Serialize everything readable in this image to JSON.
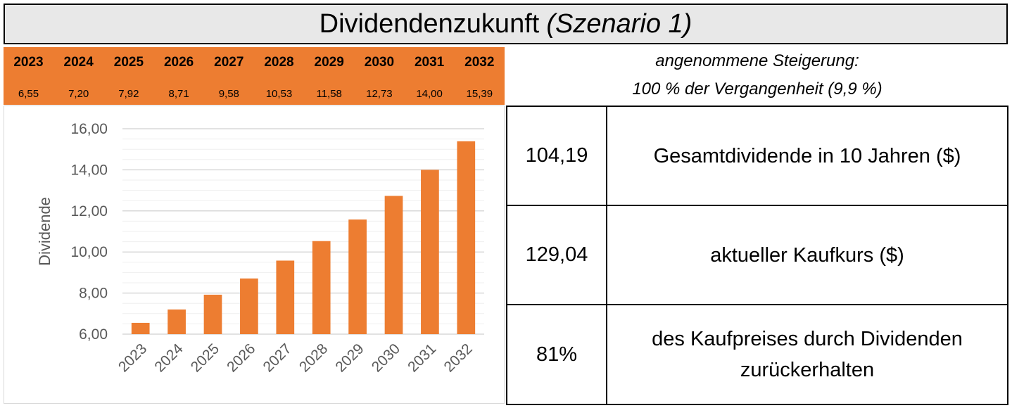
{
  "header": {
    "title_main": "Dividendenzukunft",
    "title_scenario": "(Szenario 1)"
  },
  "scenario": {
    "line1": "angenommene Steigerung:",
    "line2": "100 % der Vergangenheit (9,9 %)"
  },
  "year_table": {
    "years": [
      "2023",
      "2024",
      "2025",
      "2026",
      "2027",
      "2028",
      "2029",
      "2030",
      "2031",
      "2032"
    ],
    "values": [
      "6,55",
      "7,20",
      "7,92",
      "8,71",
      "9,58",
      "10,53",
      "11,58",
      "12,73",
      "14,00",
      "15,39"
    ]
  },
  "summary": [
    {
      "value": "104,19",
      "label": "Gesamtdividende in 10 Jahren ($)"
    },
    {
      "value": "129,04",
      "label": "aktueller Kaufkurs ($)"
    },
    {
      "value": "81%",
      "label": "des Kaufpreises durch Dividenden zurückerhalten"
    }
  ],
  "colors": {
    "bar": "#ed7d31",
    "band": "#ed7d31",
    "title_bg": "#e8e8e8",
    "grid": "#d9d9d9",
    "axis_text": "#595959"
  },
  "chart_data": {
    "type": "bar",
    "title": "",
    "xlabel": "",
    "ylabel": "Dividende",
    "categories": [
      "2023",
      "2024",
      "2025",
      "2026",
      "2027",
      "2028",
      "2029",
      "2030",
      "2031",
      "2032"
    ],
    "values": [
      6.55,
      7.2,
      7.92,
      8.71,
      9.58,
      10.53,
      11.58,
      12.73,
      14.0,
      15.39
    ],
    "ylim": [
      6,
      16
    ],
    "yticks": [
      6,
      8,
      10,
      12,
      14,
      16
    ],
    "ytick_labels": [
      "6,00",
      "8,00",
      "10,00",
      "12,00",
      "14,00",
      "16,00"
    ],
    "grid": true,
    "minor_grid": true,
    "legend": "none",
    "xtick_rotation": "-45"
  }
}
